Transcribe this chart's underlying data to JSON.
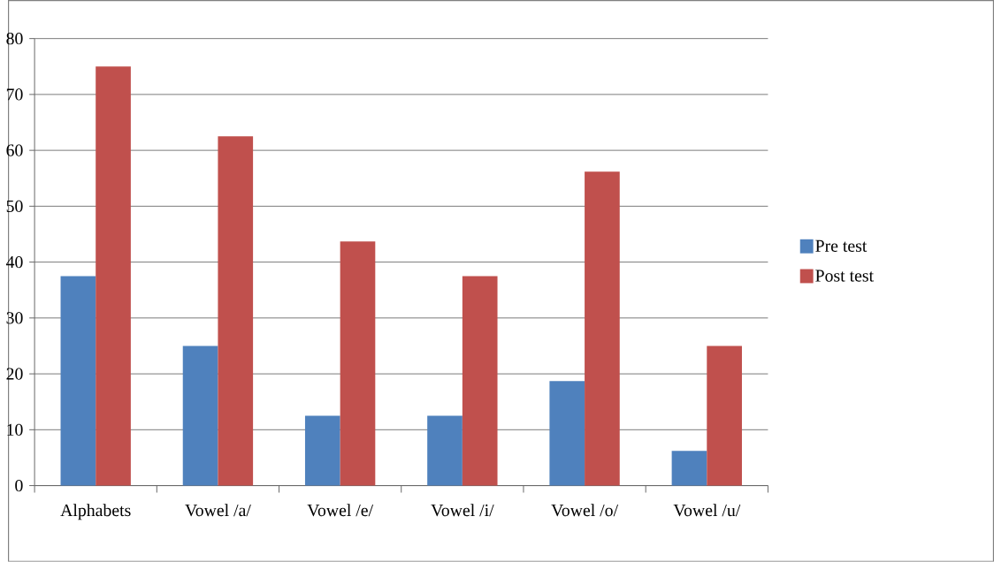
{
  "chart_data": {
    "type": "bar",
    "categories": [
      "Alphabets",
      "Vowel /a/",
      "Vowel /e/",
      "Vowel /i/",
      "Vowel /o/",
      "Vowel /u/"
    ],
    "series": [
      {
        "name": "Pre test",
        "color": "#4f81bd",
        "values": [
          37.5,
          25,
          12.5,
          12.5,
          18.7,
          6.2
        ]
      },
      {
        "name": "Post test",
        "color": "#c0504d",
        "values": [
          75,
          62.5,
          43.7,
          37.5,
          56.2,
          25
        ]
      }
    ],
    "ylim": [
      0,
      80
    ],
    "yticks": [
      0,
      10,
      20,
      30,
      40,
      50,
      60,
      70,
      80
    ],
    "grid": "y",
    "legend": "right"
  }
}
